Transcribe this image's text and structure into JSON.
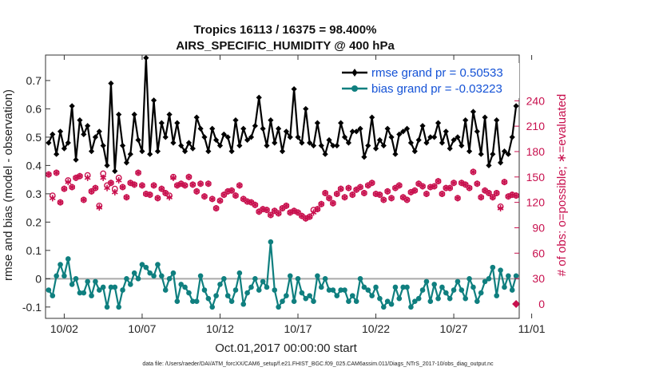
{
  "chart_data": {
    "type": "line",
    "title_line1": "Tropics 16113 / 16375 = 98.400%",
    "title_line2": "AIRS_SPECIFIC_HUMIDITY @ 400 hPa",
    "xlabel": "Oct.01,2017 00:00:00 start",
    "ylabel": "rmse and bias (model - observation)",
    "y2label": "# of obs: o=possible; ∗=evaluated",
    "footnote": "data file: /Users/raeder/DAI/ATM_forcXX/CAM6_setup/f.e21.FHIST_BGC.f09_025.CAM6assim.011/Diags_NTrS_2017-10/obs_diag_output.nc",
    "xlim": [
      0.8,
      31.2
    ],
    "ylim": [
      -0.14,
      0.79
    ],
    "y2lim": [
      -17,
      294
    ],
    "x_ticks": [
      2,
      7,
      12,
      17,
      22,
      27,
      32
    ],
    "x_tick_labels": [
      "10/02",
      "10/07",
      "10/12",
      "10/17",
      "10/22",
      "10/27",
      "11/01"
    ],
    "y_ticks": [
      -0.1,
      0,
      0.1,
      0.2,
      0.3,
      0.4,
      0.5,
      0.6,
      0.7
    ],
    "y_tick_labels": [
      "-0.1",
      "0",
      "0.1",
      "0.2",
      "0.3",
      "0.4",
      "0.5",
      "0.6",
      "0.7"
    ],
    "y2_ticks": [
      0,
      30,
      60,
      90,
      120,
      150,
      180,
      210,
      240
    ],
    "y2_tick_labels": [
      "0",
      "30",
      "60",
      "90",
      "120",
      "150",
      "180",
      "210",
      "240"
    ],
    "legend": {
      "position": "top-right",
      "rmse_label": "rmse grand pr = 0.50533",
      "bias_label": "bias grand pr = -0.03223"
    },
    "colors": {
      "rmse": "#000000",
      "bias": "#0f7f7f",
      "obs": "#c8104e",
      "zero_line": "#aaaaaa",
      "legend_text": "#1452d6"
    },
    "x": [
      1.0,
      1.25,
      1.5,
      1.75,
      2.0,
      2.25,
      2.5,
      2.75,
      3.0,
      3.25,
      3.5,
      3.75,
      4.0,
      4.25,
      4.5,
      4.75,
      5.0,
      5.25,
      5.5,
      5.75,
      6.0,
      6.25,
      6.5,
      6.75,
      7.0,
      7.25,
      7.5,
      7.75,
      8.0,
      8.25,
      8.5,
      8.75,
      9.0,
      9.25,
      9.5,
      9.75,
      10.0,
      10.25,
      10.5,
      10.75,
      11.0,
      11.25,
      11.5,
      11.75,
      12.0,
      12.25,
      12.5,
      12.75,
      13.0,
      13.25,
      13.5,
      13.75,
      14.0,
      14.25,
      14.5,
      14.75,
      15.0,
      15.25,
      15.5,
      15.75,
      16.0,
      16.25,
      16.5,
      16.75,
      17.0,
      17.25,
      17.5,
      17.75,
      18.0,
      18.25,
      18.5,
      18.75,
      19.0,
      19.25,
      19.5,
      19.75,
      20.0,
      20.25,
      20.5,
      20.75,
      21.0,
      21.25,
      21.5,
      21.75,
      22.0,
      22.25,
      22.5,
      22.75,
      23.0,
      23.25,
      23.5,
      23.75,
      24.0,
      24.25,
      24.5,
      24.75,
      25.0,
      25.25,
      25.5,
      25.75,
      26.0,
      26.25,
      26.5,
      26.75,
      27.0,
      27.25,
      27.5,
      27.75,
      28.0,
      28.25,
      28.5,
      28.75,
      29.0,
      29.25,
      29.5,
      29.75,
      30.0,
      30.25,
      30.5,
      30.75,
      31.0
    ],
    "series": [
      {
        "name": "rmse",
        "axis": "left",
        "values": [
          0.48,
          0.51,
          0.44,
          0.52,
          0.46,
          0.48,
          0.61,
          0.42,
          0.56,
          0.51,
          0.54,
          0.45,
          0.5,
          0.52,
          0.47,
          0.4,
          0.69,
          0.38,
          0.58,
          0.47,
          0.41,
          0.44,
          0.58,
          0.49,
          0.45,
          0.78,
          0.44,
          0.63,
          0.45,
          0.55,
          0.5,
          0.58,
          0.48,
          0.55,
          0.47,
          0.45,
          0.48,
          0.46,
          0.57,
          0.53,
          0.5,
          0.45,
          0.53,
          0.49,
          0.47,
          0.51,
          0.5,
          0.45,
          0.56,
          0.47,
          0.53,
          0.49,
          0.5,
          0.54,
          0.64,
          0.53,
          0.47,
          0.56,
          0.48,
          0.53,
          0.45,
          0.52,
          0.5,
          0.67,
          0.5,
          0.48,
          0.6,
          0.48,
          0.47,
          0.55,
          0.47,
          0.44,
          0.49,
          0.47,
          0.47,
          0.55,
          0.5,
          0.48,
          0.52,
          0.52,
          0.53,
          0.43,
          0.47,
          0.57,
          0.46,
          0.49,
          0.47,
          0.53,
          0.5,
          0.44,
          0.51,
          0.52,
          0.53,
          0.48,
          0.45,
          0.49,
          0.54,
          0.48,
          0.5,
          0.5,
          0.55,
          0.48,
          0.52,
          0.46,
          0.49,
          0.5,
          0.47,
          0.56,
          0.45,
          0.59,
          0.52,
          0.44,
          0.57,
          0.4,
          0.44,
          0.56,
          0.41,
          0.45,
          0.44,
          0.5,
          0.61
        ]
      },
      {
        "name": "bias",
        "axis": "left",
        "values": [
          -0.04,
          -0.06,
          0.01,
          0.05,
          0.01,
          0.07,
          -0.02,
          0.0,
          -0.05,
          -0.05,
          -0.01,
          -0.06,
          -0.01,
          -0.04,
          -0.03,
          -0.1,
          -0.03,
          -0.03,
          -0.1,
          -0.04,
          0.0,
          -0.02,
          0.02,
          0.0,
          0.05,
          0.04,
          0.02,
          0.01,
          0.05,
          0.01,
          -0.04,
          0.0,
          0.02,
          -0.08,
          -0.02,
          -0.03,
          -0.05,
          -0.08,
          -0.08,
          0.01,
          -0.04,
          -0.07,
          -0.1,
          -0.06,
          -0.02,
          0.0,
          -0.06,
          -0.08,
          -0.04,
          0.02,
          -0.09,
          -0.05,
          -0.03,
          0.0,
          -0.04,
          -0.01,
          -0.03,
          0.13,
          -0.04,
          -0.1,
          -0.08,
          -0.06,
          0.01,
          -0.08,
          0.0,
          -0.05,
          -0.07,
          -0.06,
          -0.08,
          0.01,
          -0.03,
          0.0,
          -0.04,
          -0.04,
          -0.06,
          -0.04,
          -0.04,
          -0.08,
          -0.06,
          -0.08,
          0.0,
          -0.03,
          -0.04,
          -0.06,
          -0.03,
          -0.07,
          -0.1,
          -0.08,
          -0.09,
          -0.03,
          -0.07,
          -0.03,
          -0.03,
          -0.1,
          -0.08,
          -0.07,
          -0.04,
          -0.01,
          -0.08,
          -0.02,
          -0.07,
          -0.03,
          -0.05,
          -0.07,
          -0.04,
          -0.01,
          -0.04,
          -0.07,
          0.0,
          -0.03,
          -0.08,
          -0.05,
          -0.01,
          0.0,
          0.04,
          -0.06,
          0.03,
          -0.03,
          0.01,
          -0.04,
          0.01
        ]
      },
      {
        "name": "obs possible",
        "axis": "right",
        "values": [
          153,
          128,
          155,
          120,
          136,
          146,
          138,
          149,
          151,
          123,
          152,
          133,
          137,
          116,
          154,
          140,
          143,
          136,
          149,
          138,
          126,
          143,
          141,
          155,
          140,
          130,
          129,
          140,
          125,
          136,
          131,
          128,
          150,
          140,
          142,
          140,
          150,
          141,
          133,
          142,
          127,
          142,
          124,
          113,
          122,
          129,
          133,
          134,
          128,
          140,
          124,
          121,
          120,
          117,
          109,
          112,
          111,
          105,
          110,
          107,
          113,
          116,
          108,
          110,
          108,
          104,
          101,
          103,
          111,
          112,
          118,
          131,
          125,
          119,
          130,
          136,
          126,
          137,
          129,
          135,
          138,
          131,
          140,
          143,
          130,
          129,
          123,
          133,
          125,
          137,
          140,
          126,
          123,
          132,
          134,
          142,
          139,
          130,
          138,
          139,
          145,
          130,
          137,
          137,
          143,
          125,
          143,
          141,
          137,
          156,
          142,
          126,
          134,
          131,
          126,
          131,
          115,
          144,
          127,
          129,
          128
        ]
      },
      {
        "name": "obs evaluated",
        "axis": "right",
        "values": [
          153,
          125,
          155,
          120,
          136,
          144,
          138,
          149,
          151,
          123,
          149,
          133,
          137,
          114,
          149,
          137,
          143,
          132,
          146,
          138,
          126,
          143,
          141,
          155,
          140,
          130,
          129,
          140,
          125,
          136,
          131,
          126,
          149,
          140,
          142,
          140,
          150,
          141,
          133,
          142,
          127,
          142,
          124,
          113,
          122,
          129,
          133,
          134,
          128,
          140,
          124,
          121,
          120,
          117,
          109,
          112,
          111,
          105,
          110,
          107,
          113,
          116,
          108,
          110,
          108,
          104,
          101,
          103,
          108,
          112,
          118,
          131,
          125,
          119,
          130,
          136,
          126,
          137,
          129,
          135,
          138,
          131,
          140,
          143,
          130,
          129,
          123,
          133,
          125,
          137,
          140,
          126,
          123,
          132,
          134,
          142,
          139,
          130,
          138,
          139,
          145,
          130,
          137,
          137,
          143,
          125,
          143,
          141,
          137,
          156,
          142,
          126,
          134,
          131,
          126,
          131,
          113,
          144,
          127,
          129,
          128
        ]
      },
      {
        "name": "end-of-period obs count",
        "axis": "right",
        "x_position": 31.0,
        "value": 0
      }
    ]
  }
}
